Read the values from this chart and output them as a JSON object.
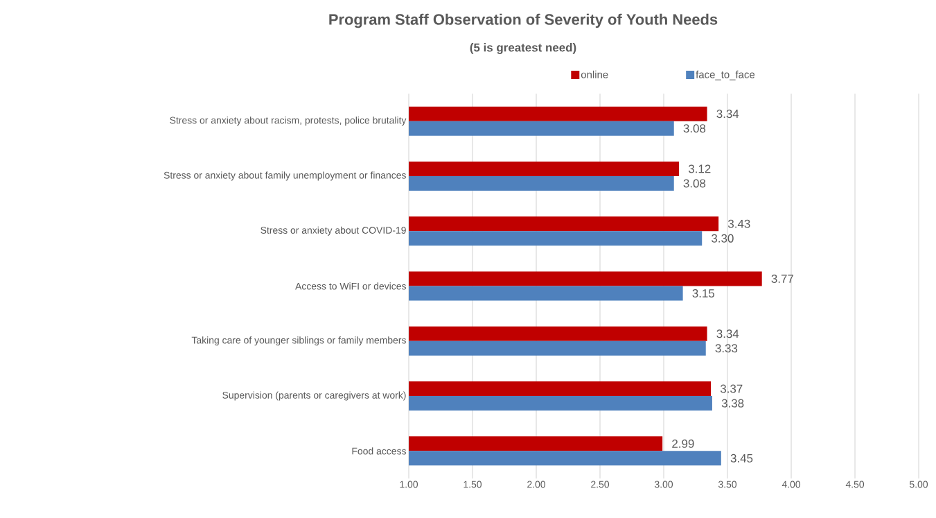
{
  "chart_data": {
    "type": "bar",
    "orientation": "horizontal",
    "title": "Program Staff Observation of Severity of Youth Needs",
    "subtitle": "(5 is greatest need)",
    "categories": [
      "Stress or anxiety about racism, protests, police brutality",
      "Stress or anxiety about family unemployment or finances",
      "Stress or anxiety about COVID-19",
      "Access to WiFI or devices",
      "Taking care of younger siblings or family members",
      "Supervision (parents or caregivers at work)",
      "Food access"
    ],
    "series": [
      {
        "name": "online",
        "color": "#c00000",
        "values": [
          3.34,
          3.12,
          3.43,
          3.77,
          3.34,
          3.37,
          2.99
        ],
        "value_labels": [
          "3.34",
          "3.12",
          "3.43",
          "3.77",
          "3.34",
          "3.37",
          "2.99"
        ]
      },
      {
        "name": "face_to_face",
        "color": "#4f81bd",
        "values": [
          3.08,
          3.08,
          3.3,
          3.15,
          3.33,
          3.38,
          3.45
        ],
        "value_labels": [
          "3.08",
          "3.08",
          "3.30",
          "3.15",
          "3.33",
          "3.38",
          "3.45"
        ]
      }
    ],
    "xlim": [
      1,
      5
    ],
    "xticks": [
      {
        "value": 1,
        "label": "1.00"
      },
      {
        "value": 1.5,
        "label": "1.50"
      },
      {
        "value": 2,
        "label": "2.00"
      },
      {
        "value": 2.5,
        "label": "2.50"
      },
      {
        "value": 3,
        "label": "3.00"
      },
      {
        "value": 3.5,
        "label": "3.50"
      },
      {
        "value": 4,
        "label": "4.00"
      },
      {
        "value": 4.5,
        "label": "4.50"
      },
      {
        "value": 5,
        "label": "5.00"
      }
    ],
    "grid": "x",
    "legend": "top"
  }
}
